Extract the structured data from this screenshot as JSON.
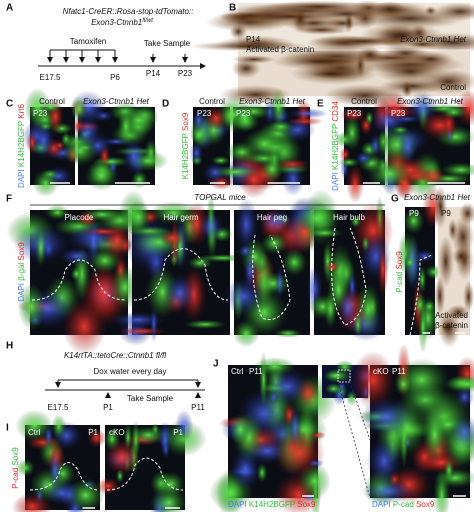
{
  "panel_a": {
    "label": "A",
    "title_line1": "Nfatc1-CreER::Rosa-stop-tdTomato::",
    "title_line2": "Exon3-Ctnnb1",
    "title_sup": "fl/wt",
    "treatment": "Tamoxifen",
    "sample": "Take Sample",
    "timepoints": [
      "E17.5",
      "P6",
      "P14",
      "P23"
    ]
  },
  "panel_b": {
    "label": "B",
    "age": "P14",
    "stain": "Activated β-catenin",
    "top_group": "Exon3-Ctnnb1 Het",
    "bottom_group": "Control"
  },
  "panel_c": {
    "label": "C",
    "groups": [
      "Control",
      "Exon3-Ctnnb1 Het"
    ],
    "age": "P23",
    "stains": [
      "DAPI",
      "K14H2BGFP",
      "Krt6"
    ]
  },
  "panel_d": {
    "label": "D",
    "groups": [
      "Control",
      "Exon3-Ctnnb1 Het"
    ],
    "ages": [
      "P23",
      "P23"
    ],
    "stains": [
      "K14H2BGFP",
      "Sox9"
    ]
  },
  "panel_e": {
    "label": "E",
    "groups": [
      "Control",
      "Exon3-Ctnnb1 Het"
    ],
    "ages": [
      "P23",
      "P23"
    ],
    "stains": [
      "DAPI",
      "K14H2BGFP",
      "CD34"
    ]
  },
  "panel_f": {
    "label": "F",
    "title": "TOPGAL mice",
    "stages": [
      "Placode",
      "Hair germ",
      "Hair peg",
      "Hair bulb"
    ],
    "stains": [
      "DAPI",
      "β-gal",
      "Sox9"
    ]
  },
  "panel_g": {
    "label": "G",
    "title": "Exon3-Ctnnb1 Het",
    "ages": [
      "P9",
      "P9"
    ],
    "stains": [
      "P-cad",
      "Sox9"
    ],
    "stain_right_line1": "Activated",
    "stain_right_line2": "β-catenin"
  },
  "panel_h": {
    "label": "H",
    "title": "K14rtTA::tetoCre::Ctnnb1 fl/fl",
    "treatment": "Dox water every day",
    "sample": "Take Sample",
    "timepoints": [
      "E17.5",
      "P1",
      "P11"
    ]
  },
  "panel_i": {
    "label": "I",
    "groups": [
      "Ctrl",
      "cKO"
    ],
    "ages": [
      "P1",
      "P1"
    ],
    "stains": [
      "P-cad",
      "Sox9"
    ]
  },
  "panel_j": {
    "label": "J",
    "left_group": "Ctrl",
    "left_age": "P11",
    "right_group": "cKO",
    "right_age": "P11",
    "left_stains": [
      "DAPI",
      "K14H2BGFP",
      "Sox9"
    ],
    "right_stains": [
      "DAPI",
      "P-cad",
      "Sox9"
    ]
  }
}
